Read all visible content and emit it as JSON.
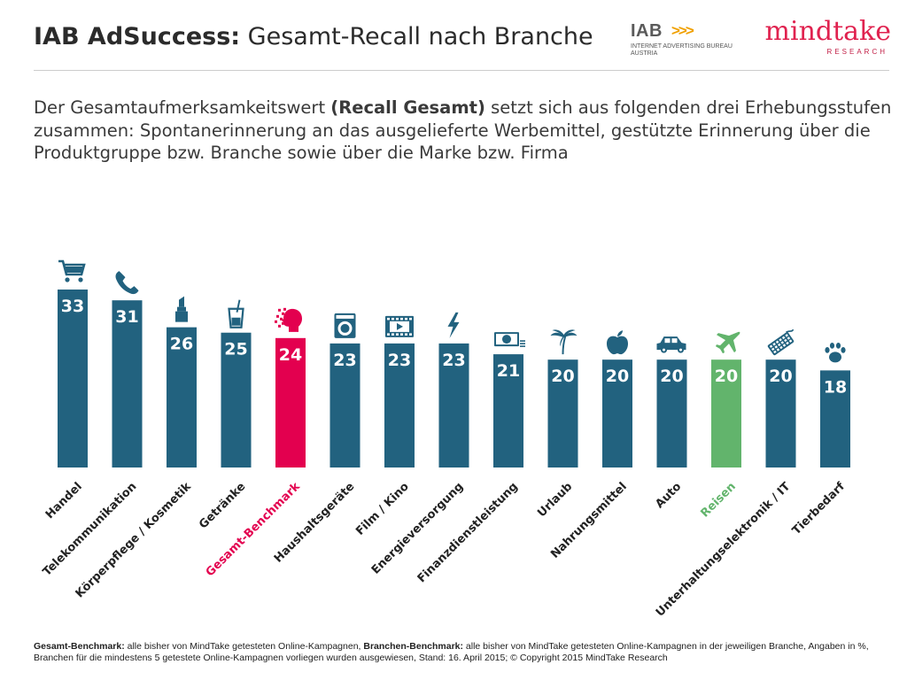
{
  "header": {
    "title_bold": "IAB AdSuccess:",
    "title_rest": "Gesamt-Recall nach Branche",
    "iab_logo": {
      "word": "IAB",
      "arrows": ">>>",
      "line1": "INTERNET ADVERTISING BUREAU",
      "line2": "AUSTRIA"
    },
    "mindtake_logo": {
      "word": "mindtake",
      "sub": "RESEARCH"
    }
  },
  "intro": {
    "part1": "Der Gesamtaufmerksamkeitswert ",
    "bold": "(Recall Gesamt)",
    "part2": " setzt sich aus folgenden drei Erhebungsstufen zusammen: Spontanerinnerung an das ausgelieferte Werbemittel, gestützte Erinnerung über die Produktgruppe bzw. Branche sowie über die Marke bzw. Firma"
  },
  "chart_data": {
    "type": "bar",
    "title": "",
    "xlabel": "",
    "ylabel": "",
    "ylim": [
      0,
      35
    ],
    "grid": false,
    "legend": "none",
    "categories": [
      "Handel",
      "Telekommunikation",
      "Körperpflege / Kosmetik",
      "Getränke",
      "Gesamt-Benchmark",
      "Haushaltsgeräte",
      "Film / Kino",
      "Energieversorgung",
      "Finanzdienstleistung",
      "Urlaub",
      "Nahrungsmittel",
      "Auto",
      "Reisen",
      "Unterhaltungselektronik / IT",
      "Tierbedarf"
    ],
    "values": [
      33,
      31,
      26,
      25,
      24,
      23,
      23,
      23,
      21,
      20,
      20,
      20,
      20,
      20,
      18
    ],
    "icons": [
      "shopping-cart-icon",
      "phone-icon",
      "lipstick-icon",
      "drink-glass-icon",
      "head-pixels-icon",
      "washing-machine-icon",
      "film-icon",
      "lightning-icon",
      "banknote-icon",
      "palm-tree-icon",
      "apple-icon",
      "car-icon",
      "airplane-icon",
      "keyboard-icon",
      "paw-icon"
    ],
    "colors": {
      "default": "#22627f",
      "Gesamt-Benchmark": "#e3004f",
      "Reisen": "#62b46c"
    }
  },
  "footnote": {
    "b1": "Gesamt-Benchmark:",
    "t1": " alle bisher von MindTake getesteten Online-Kampagnen, ",
    "b2": "Branchen-Benchmark:",
    "t2": " alle bisher von MindTake getesteten Online-Kampagnen in der jeweiligen Branche, Angaben in %, Branchen für die mindestens 5 getestete Online-Kampagnen vorliegen wurden ausgewiesen, Stand: 16. April 2015; © Copyright 2015 MindTake Research"
  }
}
